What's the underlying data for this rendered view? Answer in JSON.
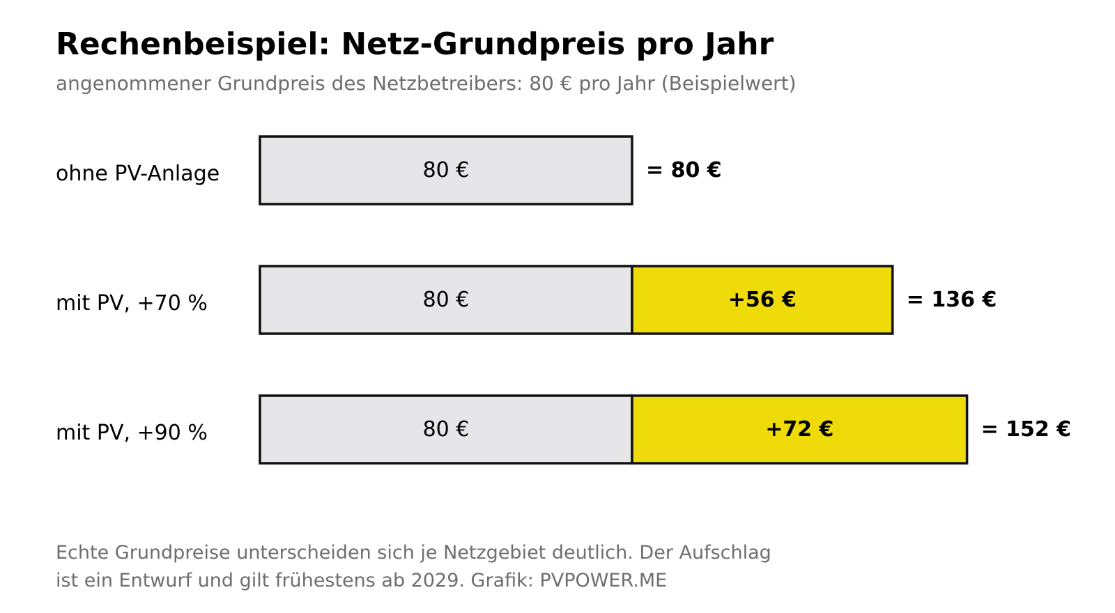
{
  "header": {
    "title": "Rechenbeispiel: Netz-Grundpreis pro Jahr",
    "subtitle": "angenommener Grundpreis des Netzbetreibers: 80 € pro Jahr (Beispielwert)"
  },
  "footnote": {
    "line1": "Echte Grundpreise unterscheiden sich je Netzgebiet deutlich. Der Aufschlag",
    "line2": "ist ein Entwurf und gilt frühestens ab 2029. Grafik: PVPOWER.ME"
  },
  "colors": {
    "base": "#e6e6e8",
    "surcharge": "#efda0a",
    "outline": "#111111"
  },
  "chart_data": {
    "type": "bar",
    "orientation": "horizontal",
    "stacked": true,
    "categories": [
      "ohne PV-Anlage",
      "mit PV, +70 %",
      "mit PV, +90 %"
    ],
    "series": [
      {
        "values": [
          80,
          80,
          80
        ],
        "labels": [
          "80 €",
          "80 €",
          "80 €"
        ]
      },
      {
        "values": [
          0,
          56,
          72
        ],
        "labels": [
          "",
          "+56 €",
          "+72 €"
        ]
      }
    ],
    "totals": [
      80,
      136,
      152
    ],
    "total_labels": [
      "= 80 €",
      "= 136 €",
      "= 152 €"
    ],
    "xlim": [
      0,
      152
    ],
    "grid": false,
    "legend": "none"
  }
}
